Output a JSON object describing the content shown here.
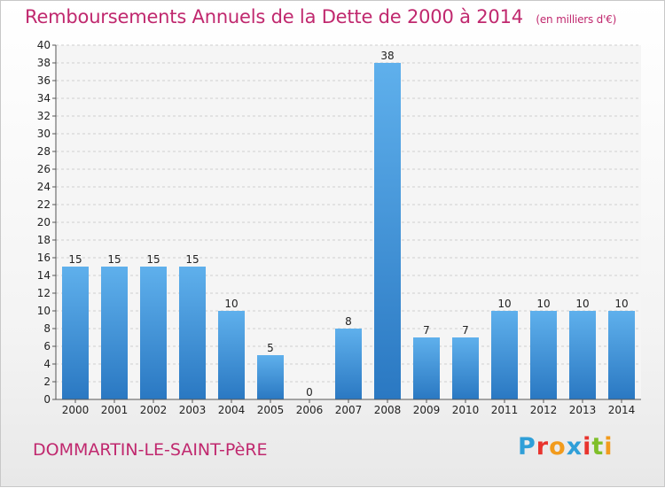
{
  "chart_data": {
    "type": "bar",
    "title": "Remboursements Annuels de la Dette de 2000 à 2014",
    "unit": "(en milliers d'€)",
    "categories": [
      "2000",
      "2001",
      "2002",
      "2003",
      "2004",
      "2005",
      "2006",
      "2007",
      "2008",
      "2009",
      "2010",
      "2011",
      "2012",
      "2013",
      "2014"
    ],
    "values": [
      15,
      15,
      15,
      15,
      10,
      5,
      0,
      8,
      38,
      7,
      7,
      10,
      10,
      10,
      10
    ],
    "ylim": [
      0,
      40
    ],
    "yticks": [
      0,
      2,
      4,
      6,
      8,
      10,
      12,
      14,
      16,
      18,
      20,
      22,
      24,
      26,
      28,
      30,
      32,
      34,
      36,
      38,
      40
    ],
    "grid": true,
    "bar_color": "#3a8fd6"
  },
  "commune": "DOMMARTIN-LE-SAINT-PèRE",
  "logo": {
    "letters": [
      "P",
      "r",
      "o",
      "x",
      "i",
      "t",
      "i"
    ],
    "colors": [
      "#2f9fd8",
      "#e8342e",
      "#f29b1c",
      "#2f9fd8",
      "#e8342e",
      "#7fbf2a",
      "#f29b1c"
    ]
  }
}
